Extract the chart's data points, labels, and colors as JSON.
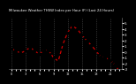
{
  "title": "Milwaukee Weather THSW Index per Hour (F) (Last 24 Hours)",
  "x_values": [
    0,
    1,
    2,
    3,
    4,
    5,
    6,
    7,
    8,
    9,
    10,
    11,
    12,
    13,
    14,
    15,
    16,
    17,
    18,
    19,
    20,
    21,
    22,
    23
  ],
  "y_values": [
    28,
    26,
    24,
    26,
    29,
    26,
    23,
    27,
    26,
    20,
    17,
    32,
    42,
    48,
    45,
    40,
    35,
    31,
    26,
    21,
    20,
    18,
    14,
    8
  ],
  "line_color": "#cc0000",
  "marker_color": "#000000",
  "background_color": "#000000",
  "plot_bg_color": "#000000",
  "grid_color": "#555555",
  "ylim_min": 10,
  "ylim_max": 55,
  "ytick_values": [
    50,
    45,
    40,
    35,
    30,
    25,
    20,
    15,
    10
  ],
  "ytick_labels": [
    "5",
    "4",
    "3",
    "2",
    "1",
    "0",
    "-1",
    "-2",
    "-3"
  ],
  "xtick_spacing": 3
}
